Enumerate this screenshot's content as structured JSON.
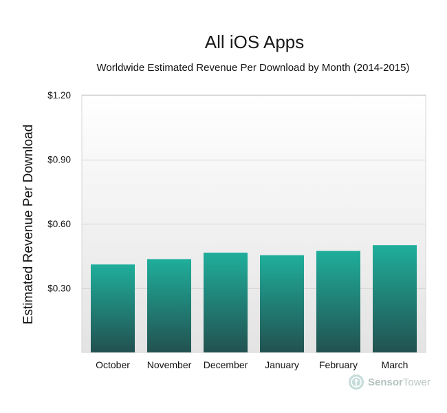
{
  "chart_data": {
    "type": "bar",
    "title": "All iOS Apps",
    "subtitle": "Worldwide Estimated Revenue Per Download by Month (2014-2015)",
    "xlabel": "",
    "ylabel": "Estimated Revenue Per Download",
    "categories": [
      "October",
      "November",
      "December",
      "January",
      "February",
      "March"
    ],
    "values": [
      0.41,
      0.435,
      0.465,
      0.453,
      0.473,
      0.5
    ],
    "ylim": [
      0,
      1.2
    ],
    "yticks": [
      0.3,
      0.6,
      0.9,
      1.2
    ],
    "ytick_labels": [
      "$0.30",
      "$0.60",
      "$0.90",
      "$1.20"
    ],
    "grid": true,
    "legend": "none",
    "colors": {
      "bar_top": "#1fae9b",
      "bar_bottom": "#225150",
      "plot_top": "#ffffff",
      "plot_bottom": "#e3e3e3",
      "grid": "#d2d2d2"
    }
  },
  "brand": {
    "name_bold": "Sensor",
    "name_light": "Tower"
  }
}
